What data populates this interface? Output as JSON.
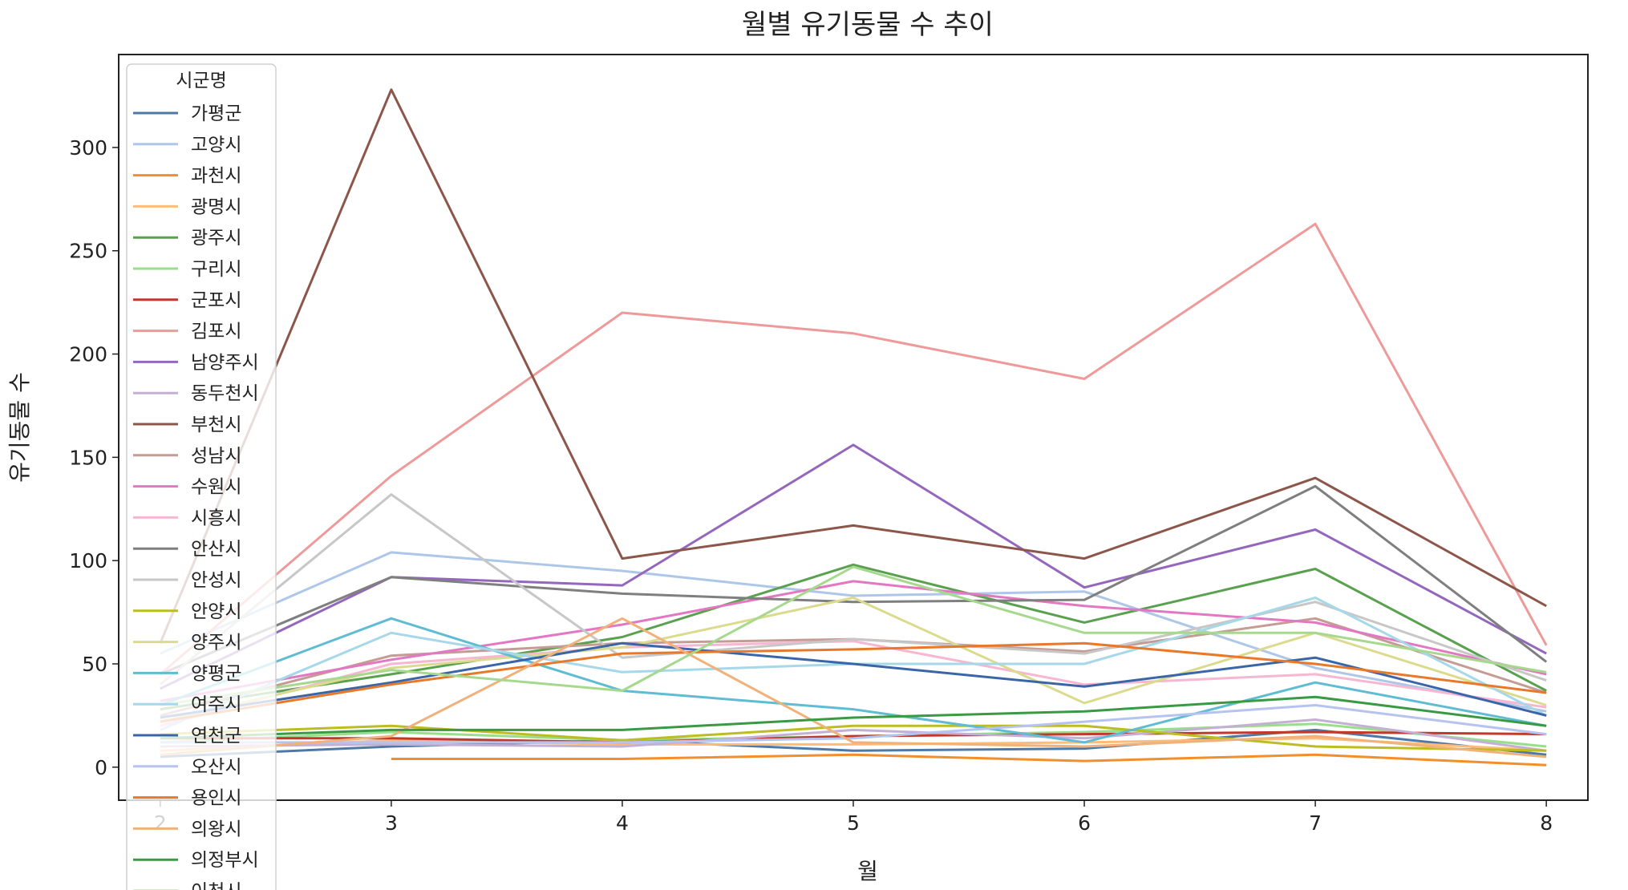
{
  "chart_data": {
    "type": "line",
    "title": "월별 유기동물 수 추이",
    "xlabel": "월",
    "ylabel": "유기동물 수",
    "x": [
      2,
      3,
      4,
      5,
      6,
      7,
      8
    ],
    "xlim": [
      1.82,
      8.18
    ],
    "ylim": [
      -16,
      345
    ],
    "yticks": [
      0,
      50,
      100,
      150,
      200,
      250,
      300
    ],
    "grid": false,
    "legend": {
      "title": "시군명",
      "placement": "upper-left (clipped at bottom)"
    },
    "series": [
      {
        "name": "가평군",
        "color": "#4e79a7",
        "values": [
          5,
          10,
          13,
          8,
          9,
          18,
          6
        ]
      },
      {
        "name": "고양시",
        "color": "#aec7e8",
        "values": [
          55,
          104,
          95,
          83,
          85,
          48,
          27
        ]
      },
      {
        "name": "과천시",
        "color": "#f28e2b",
        "values": [
          null,
          4,
          4,
          6,
          3,
          6,
          1
        ]
      },
      {
        "name": "광명시",
        "color": "#ffbb78",
        "values": [
          8,
          13,
          11,
          11,
          12,
          14,
          8
        ]
      },
      {
        "name": "광주시",
        "color": "#59a14f",
        "values": [
          28,
          45,
          63,
          98,
          70,
          96,
          37
        ]
      },
      {
        "name": "구리시",
        "color": "#98df8a",
        "values": [
          12,
          17,
          13,
          15,
          17,
          21,
          10
        ]
      },
      {
        "name": "군포시",
        "color": "#c0392b",
        "values": [
          14,
          14,
          12,
          15,
          16,
          17,
          16
        ]
      },
      {
        "name": "김포시",
        "color": "#ee9a9a",
        "values": [
          45,
          141,
          220,
          210,
          188,
          263,
          59
        ]
      },
      {
        "name": "남양주시",
        "color": "#9467bd",
        "values": [
          38,
          92,
          88,
          156,
          87,
          115,
          55
        ]
      },
      {
        "name": "동두천시",
        "color": "#c5b0d5",
        "values": [
          10,
          11,
          10,
          18,
          14,
          23,
          8
        ]
      },
      {
        "name": "부천시",
        "color": "#8c564b",
        "values": [
          60,
          328,
          101,
          117,
          101,
          140,
          78
        ]
      },
      {
        "name": "성남시",
        "color": "#c49c94",
        "values": [
          25,
          54,
          60,
          62,
          56,
          72,
          36
        ]
      },
      {
        "name": "수원시",
        "color": "#e377c2",
        "values": [
          32,
          52,
          69,
          90,
          78,
          70,
          45
        ]
      },
      {
        "name": "시흥시",
        "color": "#f7b6d2",
        "values": [
          20,
          50,
          58,
          61,
          40,
          45,
          29
        ]
      },
      {
        "name": "안산시",
        "color": "#7f7f7f",
        "values": [
          45,
          92,
          84,
          80,
          81,
          136,
          51
        ]
      },
      {
        "name": "안성시",
        "color": "#c7c7c7",
        "values": [
          40,
          132,
          53,
          62,
          55,
          80,
          42
        ]
      },
      {
        "name": "안양시",
        "color": "#bcbd22",
        "values": [
          16,
          20,
          13,
          20,
          20,
          10,
          8
        ]
      },
      {
        "name": "양주시",
        "color": "#dbdb8d",
        "values": [
          22,
          48,
          58,
          82,
          31,
          65,
          30
        ]
      },
      {
        "name": "양평군",
        "color": "#5fbcd3",
        "values": [
          30,
          72,
          37,
          28,
          12,
          41,
          20
        ]
      },
      {
        "name": "여주시",
        "color": "#a6d8ea",
        "values": [
          18,
          65,
          46,
          50,
          50,
          82,
          25
        ]
      },
      {
        "name": "연천군",
        "color": "#3a66a8",
        "values": [
          24,
          41,
          60,
          50,
          39,
          53,
          25
        ]
      },
      {
        "name": "오산시",
        "color": "#b6c3f0",
        "values": [
          12,
          12,
          12,
          14,
          22,
          30,
          16
        ]
      },
      {
        "name": "용인시",
        "color": "#e8782a",
        "values": [
          22,
          40,
          55,
          57,
          60,
          50,
          36
        ]
      },
      {
        "name": "의왕시",
        "color": "#f0b27a",
        "values": [
          6,
          15,
          72,
          12,
          10,
          15,
          5
        ]
      },
      {
        "name": "의정부시",
        "color": "#3a9a44",
        "values": [
          14,
          18,
          18,
          24,
          27,
          34,
          20
        ]
      },
      {
        "name": "이천시",
        "color": "#a6d98e",
        "values": [
          30,
          47,
          37,
          97,
          65,
          65,
          46
        ]
      }
    ]
  }
}
